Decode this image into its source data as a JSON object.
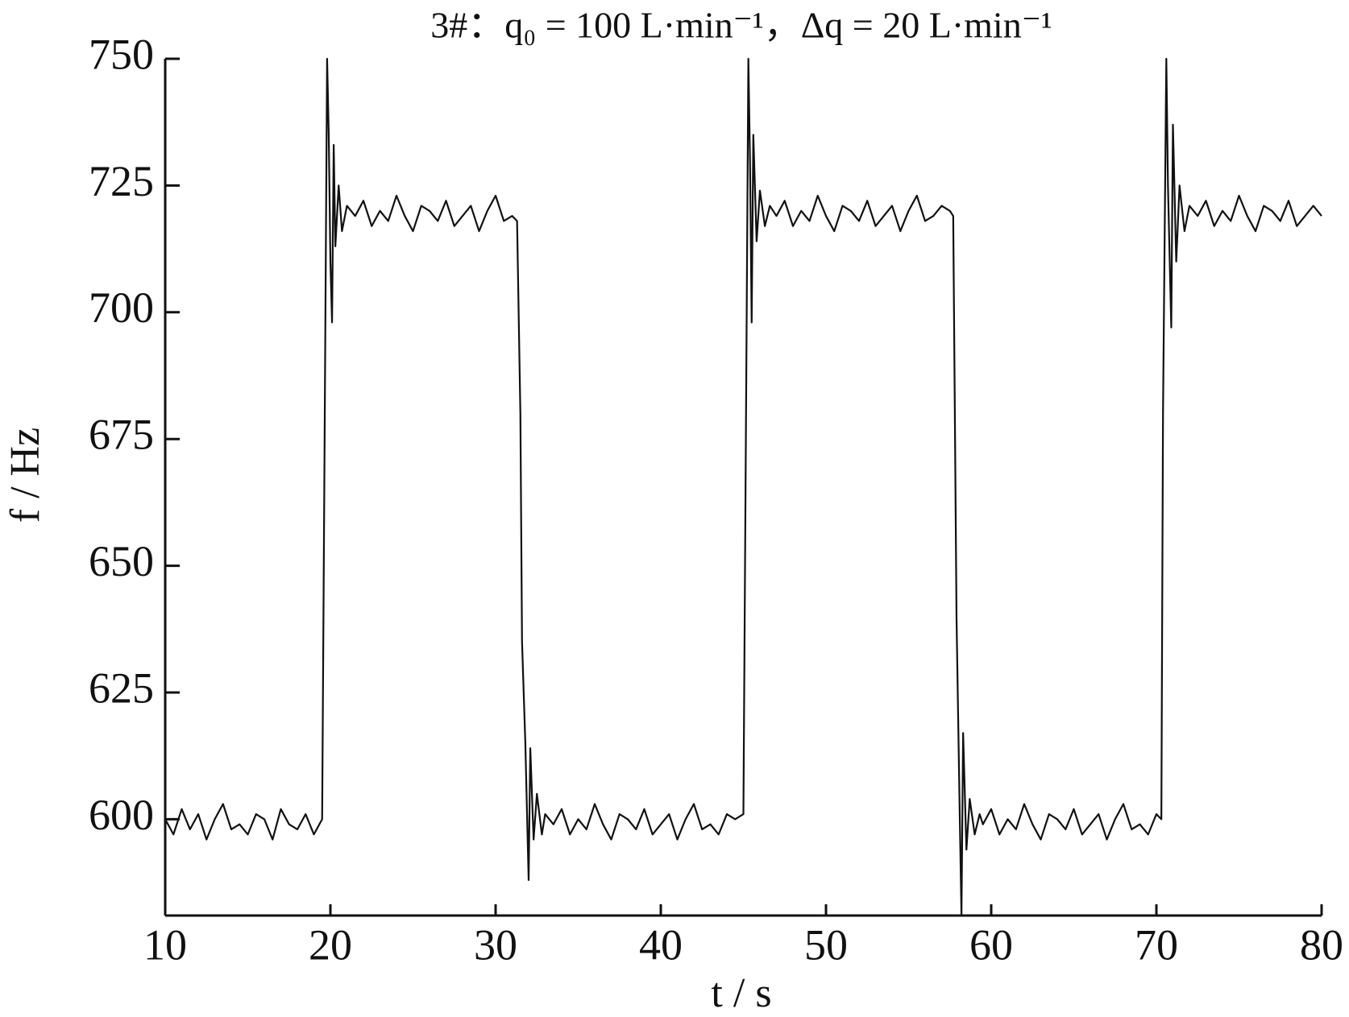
{
  "chart_data": {
    "type": "line",
    "title": "3#：q₀ = 100 L·min⁻¹，Δq = 20 L·min⁻¹",
    "xlabel": "t / s",
    "ylabel": "f / Hz",
    "xlim": [
      10,
      80
    ],
    "ylim": [
      581,
      750
    ],
    "xticks": [
      10,
      20,
      30,
      40,
      50,
      60,
      70,
      80
    ],
    "yticks": [
      600,
      625,
      650,
      675,
      700,
      725,
      750
    ],
    "grid": false,
    "x": [
      10,
      10.5,
      11,
      11.5,
      12,
      12.5,
      13,
      13.5,
      14,
      14.5,
      15,
      15.5,
      16,
      16.5,
      17,
      17.5,
      18,
      18.5,
      19,
      19.5,
      19.7,
      19.8,
      19.9,
      20,
      20.1,
      20.2,
      20.3,
      20.5,
      20.7,
      21,
      21.5,
      22,
      22.5,
      23,
      23.5,
      24,
      24.5,
      25,
      25.5,
      26,
      26.5,
      27,
      27.5,
      28,
      28.5,
      29,
      29.5,
      30,
      30.5,
      31,
      31.3,
      31.5,
      31.6,
      31.8,
      32,
      32.1,
      32.3,
      32.5,
      32.8,
      33,
      33.5,
      34,
      34.5,
      35,
      35.5,
      36,
      36.5,
      37,
      37.5,
      38,
      38.5,
      39,
      39.5,
      40,
      40.5,
      41,
      41.5,
      42,
      42.5,
      43,
      43.5,
      44,
      44.5,
      45,
      45.2,
      45.3,
      45.4,
      45.5,
      45.6,
      45.8,
      46,
      46.3,
      46.6,
      47,
      47.5,
      48,
      48.5,
      49,
      49.5,
      50,
      50.5,
      51,
      51.5,
      52,
      52.5,
      53,
      53.5,
      54,
      54.5,
      55,
      55.5,
      56,
      56.5,
      57,
      57.5,
      57.7,
      57.8,
      57.9,
      58.1,
      58.2,
      58.3,
      58.5,
      58.7,
      59,
      59.3,
      59.5,
      60,
      60.5,
      61,
      61.5,
      62,
      62.5,
      63,
      63.5,
      64,
      64.5,
      65,
      65.5,
      66,
      66.5,
      67,
      67.5,
      68,
      68.5,
      69,
      69.5,
      70,
      70.3,
      70.4,
      70.6,
      70.7,
      70.9,
      71,
      71.2,
      71.4,
      71.7,
      72,
      72.5,
      73,
      73.5,
      74,
      74.5,
      75,
      75.5,
      76,
      76.5,
      77,
      77.5,
      78,
      78.5,
      79,
      79.5,
      80
    ],
    "series": [
      {
        "color": "#111111",
        "values": [
          600,
          597,
          602,
          598,
          601,
          596,
          600,
          603,
          598,
          599,
          597,
          601,
          600,
          596,
          602,
          599,
          598,
          601,
          597,
          600,
          700,
          750,
          735,
          710,
          698,
          733,
          713,
          725,
          716,
          721,
          719,
          722,
          717,
          720,
          718,
          723,
          719,
          716,
          721,
          720,
          718,
          722,
          717,
          719,
          721,
          716,
          720,
          723,
          718,
          719,
          718,
          680,
          635,
          615,
          588,
          614,
          596,
          605,
          597,
          601,
          599,
          602,
          597,
          600,
          598,
          603,
          599,
          596,
          601,
          600,
          598,
          602,
          597,
          599,
          601,
          596,
          600,
          603,
          598,
          599,
          597,
          601,
          600,
          601,
          700,
          750,
          730,
          698,
          735,
          714,
          724,
          717,
          721,
          719,
          722,
          717,
          720,
          718,
          723,
          719,
          716,
          721,
          720,
          718,
          722,
          717,
          719,
          721,
          716,
          720,
          723,
          718,
          719,
          721,
          720,
          719,
          680,
          640,
          600,
          581,
          617,
          594,
          604,
          597,
          601,
          599,
          602,
          597,
          600,
          598,
          603,
          599,
          596,
          601,
          600,
          598,
          602,
          597,
          599,
          601,
          596,
          600,
          603,
          598,
          599,
          597,
          601,
          600,
          680,
          750,
          725,
          697,
          737,
          710,
          725,
          716,
          721,
          719,
          722,
          717,
          720,
          718,
          723,
          719,
          716,
          721,
          720,
          718,
          722,
          717,
          719,
          721,
          719
        ]
      }
    ]
  }
}
